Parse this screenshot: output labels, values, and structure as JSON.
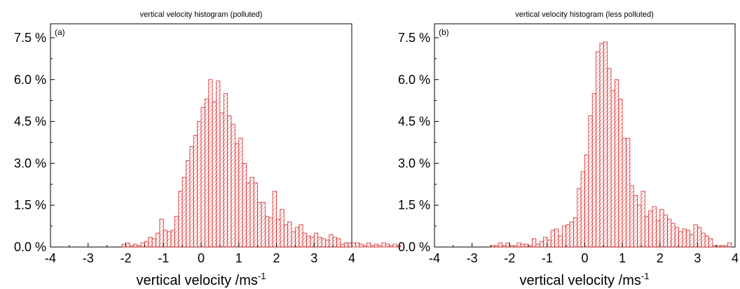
{
  "chart_data": [
    {
      "type": "bar",
      "title": "vertical velocity histogram (polluted)",
      "panel_label": "(a)",
      "xlabel": "vertical velocity /ms",
      "xlabel_sup": "-1",
      "xlim": [
        -4,
        4
      ],
      "ylim": [
        0,
        8
      ],
      "xticks": [
        "-4",
        "-3",
        "-2",
        "-1",
        "0",
        "1",
        "2",
        "3",
        "4"
      ],
      "yticks": [
        "0.0 %",
        "1.5 %",
        "3.0 %",
        "4.5 %",
        "6.0 %",
        "7.5 %"
      ],
      "bin_width": 0.1,
      "bin_start": -2.1,
      "values": [
        0.1,
        0.15,
        0.05,
        0.1,
        0.05,
        0.15,
        0.2,
        0.35,
        0.3,
        0.5,
        1.0,
        0.6,
        0.55,
        0.6,
        1.1,
        2.0,
        2.5,
        3.1,
        3.6,
        4.0,
        4.5,
        5.0,
        5.3,
        6.0,
        5.2,
        5.95,
        4.8,
        5.5,
        4.7,
        4.4,
        3.7,
        3.9,
        3.0,
        2.3,
        2.5,
        2.3,
        1.6,
        1.6,
        1.1,
        1.05,
        2.0,
        1.0,
        1.35,
        0.8,
        0.9,
        0.55,
        0.7,
        0.8,
        0.5,
        0.4,
        0.35,
        0.5,
        0.35,
        0.3,
        0.25,
        0.45,
        0.35,
        0.3,
        0.1,
        0.15,
        0.15,
        0.15,
        0.15,
        0.1,
        0.05,
        0.15,
        0.05,
        0.1,
        0.05,
        0.15,
        0.1,
        0.05,
        0.1,
        0.05
      ],
      "bar_color": "#d62728"
    },
    {
      "type": "bar",
      "title": "vertical velocity histogram (less polluted)",
      "panel_label": "(b)",
      "xlabel": "vertical velocity /ms",
      "xlabel_sup": "-1",
      "xlim": [
        -4,
        4
      ],
      "ylim": [
        0,
        8
      ],
      "xticks": [
        "-4",
        "-3",
        "-2",
        "-1",
        "0",
        "1",
        "2",
        "3",
        "4"
      ],
      "yticks": [
        "0.0 %",
        "1.5 %",
        "3.0 %",
        "4.5 %",
        "6.0 %",
        "7.5 %"
      ],
      "bin_width": 0.1,
      "bin_start": -2.5,
      "values": [
        0.05,
        0.05,
        0.15,
        0.05,
        0.15,
        0.05,
        0.05,
        0.15,
        0.1,
        0.1,
        0.05,
        0.3,
        0.1,
        0.2,
        0.35,
        0.25,
        0.6,
        0.65,
        0.4,
        0.75,
        0.8,
        0.9,
        1.05,
        2.1,
        2.7,
        3.3,
        4.7,
        5.5,
        7.0,
        7.3,
        7.35,
        6.4,
        5.6,
        6.0,
        5.3,
        3.9,
        3.9,
        2.2,
        1.85,
        1.5,
        2.0,
        1.1,
        1.3,
        1.45,
        0.95,
        1.35,
        1.15,
        1.0,
        0.85,
        0.7,
        0.55,
        0.65,
        0.6,
        0.45,
        0.8,
        0.7,
        0.5,
        0.4,
        0.3,
        0.05,
        0.05,
        0.05,
        0.05,
        0.15
      ],
      "bar_color": "#d62728"
    }
  ]
}
